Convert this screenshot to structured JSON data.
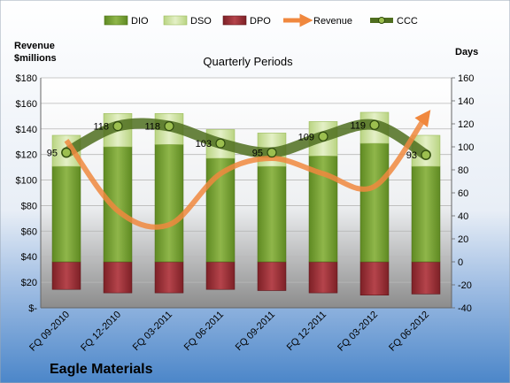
{
  "chart_data": {
    "type": "bar",
    "title": "Quarterly Periods",
    "company": "Eagle Materials",
    "left_axis_title_line1": "Revenue",
    "left_axis_title_line2": "$millions",
    "right_axis_title": "Days",
    "categories": [
      "FQ 09-2010",
      "FQ 12-2010",
      "FQ 03-2011",
      "FQ 06-2011",
      "FQ 09-2011",
      "FQ 12-2011",
      "FQ 03-2012",
      "FQ 06-2012"
    ],
    "left_axis": {
      "min": 0,
      "max": 180,
      "step": 20,
      "ticks": [
        "$-",
        "$20",
        "$40",
        "$60",
        "$80",
        "$100",
        "$120",
        "$140",
        "$160",
        "$180"
      ]
    },
    "right_axis": {
      "min": -40,
      "max": 160,
      "step": 20,
      "ticks": [
        "-40",
        "-20",
        "0",
        "20",
        "40",
        "60",
        "80",
        "100",
        "120",
        "140",
        "160"
      ]
    },
    "legend": [
      "DIO",
      "DSO",
      "DPO",
      "Revenue",
      "CCC"
    ],
    "series": [
      {
        "name": "DIO",
        "axis": "right",
        "values": [
          83,
          100,
          102,
          90,
          83,
          92,
          103,
          83
        ]
      },
      {
        "name": "DSO",
        "axis": "right",
        "values": [
          27,
          29,
          27,
          25,
          29,
          30,
          27,
          27
        ]
      },
      {
        "name": "DPO",
        "axis": "right",
        "values": [
          -24,
          -27,
          -27,
          -24,
          -25,
          -27,
          -29,
          -28
        ]
      },
      {
        "name": "Revenue",
        "axis": "left",
        "values": [
          131,
          76,
          65,
          105,
          117,
          105,
          95,
          150
        ]
      },
      {
        "name": "CCC",
        "axis": "right",
        "values": [
          95,
          118,
          118,
          103,
          95,
          109,
          119,
          93
        ]
      }
    ],
    "ccc_labels": [
      "95",
      "118",
      "118",
      "103",
      "95",
      "109",
      "119",
      "93"
    ],
    "colors": {
      "dio": "#7ea33a",
      "dso": "#cfe3a0",
      "dpo": "#9b2f35",
      "revenue": "#f0883e",
      "ccc": "#4f6e1f",
      "background_top": "#ffffff",
      "background_bottom": "#4b86c9"
    }
  }
}
